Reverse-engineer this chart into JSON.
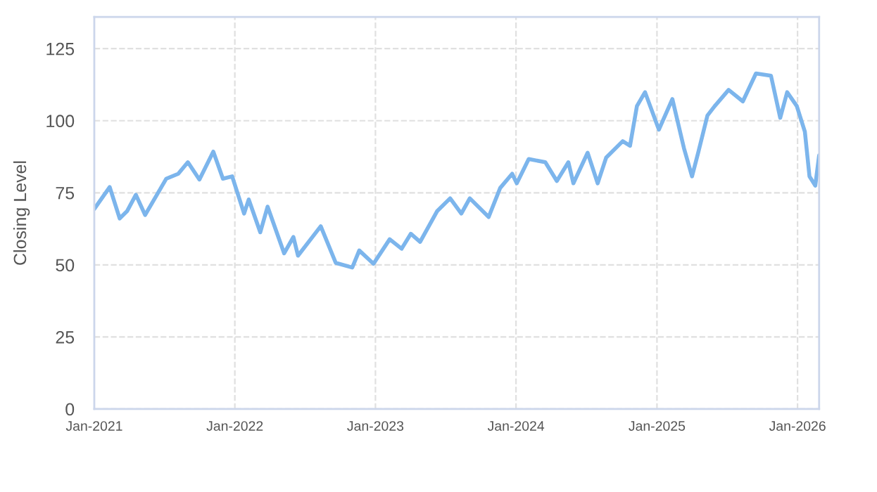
{
  "chart_data": {
    "type": "line",
    "ylabel": "Closing Level",
    "x": [
      "2021-01-01",
      "2021-02-10",
      "2021-03-08",
      "2021-03-27",
      "2021-04-19",
      "2021-05-13",
      "2021-07-07",
      "2021-08-07",
      "2021-09-01",
      "2021-10-01",
      "2021-11-06",
      "2021-12-01",
      "2021-12-25",
      "2022-01-25",
      "2022-02-06",
      "2022-03-08",
      "2022-03-27",
      "2022-05-09",
      "2022-06-02",
      "2022-06-14",
      "2022-08-12",
      "2022-09-20",
      "2022-11-02",
      "2022-11-20",
      "2022-12-27",
      "2023-02-07",
      "2023-03-10",
      "2023-04-03",
      "2023-04-27",
      "2023-06-10",
      "2023-07-14",
      "2023-08-12",
      "2023-09-03",
      "2023-10-22",
      "2023-11-21",
      "2023-12-22",
      "2024-01-03",
      "2024-02-03",
      "2024-03-17",
      "2024-04-16",
      "2024-05-16",
      "2024-05-29",
      "2024-07-05",
      "2024-07-31",
      "2024-08-22",
      "2024-10-04",
      "2024-10-23",
      "2024-11-10",
      "2024-12-01",
      "2025-01-06",
      "2025-02-10",
      "2025-03-12",
      "2025-04-02",
      "2025-04-18",
      "2025-05-12",
      "2025-05-31",
      "2025-07-06",
      "2025-08-12",
      "2025-09-15",
      "2025-10-24",
      "2025-11-17",
      "2025-12-05",
      "2025-12-30",
      "2026-01-20",
      "2026-02-01",
      "2026-02-16",
      "2026-02-26"
    ],
    "series": [
      {
        "color": "#7cb5ec",
        "values": [
          69.4,
          77,
          66.1,
          68.6,
          74.3,
          67.3,
          79.9,
          81.6,
          85.6,
          79.6,
          89.3,
          79.9,
          80.7,
          67.8,
          72.7,
          61.3,
          70.2,
          54.0,
          59.7,
          53.2,
          63.4,
          50.7,
          49.1,
          55.0,
          50.4,
          58.9,
          55.6,
          60.8,
          58.0,
          68.6,
          73.1,
          67.8,
          73.1,
          66.6,
          76.7,
          81.6,
          78.3,
          86.7,
          85.6,
          79.1,
          85.6,
          78.3,
          88.9,
          78.3,
          87.2,
          92.9,
          91.3,
          105.1,
          109.9,
          96.9,
          107.5,
          90.5,
          80.7,
          88.9,
          101.8,
          105.1,
          110.7,
          106.7,
          116.4,
          115.6,
          101.0,
          109.9,
          105.1,
          96.2,
          80.7,
          77.5,
          88.0
        ]
      }
    ],
    "xlim": [
      "2021-01-01",
      "2026-02-26"
    ],
    "xticks": [
      {
        "value": "2021-01-01",
        "label": "Jan-2021"
      },
      {
        "value": "2022-01-01",
        "label": "Jan-2022"
      },
      {
        "value": "2023-01-01",
        "label": "Jan-2023"
      },
      {
        "value": "2024-01-01",
        "label": "Jan-2024"
      },
      {
        "value": "2025-01-01",
        "label": "Jan-2025"
      },
      {
        "value": "2026-01-01",
        "label": "Jan-2026"
      }
    ],
    "ylim": [
      0,
      136
    ],
    "yticks": [
      0,
      25,
      50,
      75,
      100,
      125
    ],
    "grid": true,
    "marker": "none",
    "line_style": "solid"
  }
}
